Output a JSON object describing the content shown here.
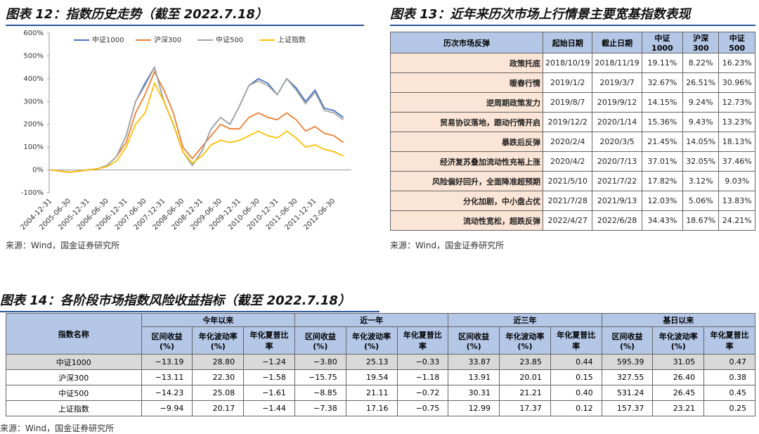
{
  "chart_data": {
    "type": "line",
    "title": "图表 12：指数历史走势（截至 2022.7.18）",
    "categories": [
      "2004-12-31",
      null,
      "2005-06-30",
      null,
      "2005-12-31",
      null,
      "2006-06-30",
      null,
      "2006-12-31",
      null,
      "2007-06-30",
      null,
      "2007-12-31",
      null,
      "2008-06-30",
      null,
      "2008-12-31",
      null,
      "2009-06-30",
      null,
      "2009-12-31",
      null,
      "2010-06-30",
      null,
      "2010-12-31",
      null,
      "2011-06-30",
      null,
      "2011-12-31",
      null,
      "2012-06-30",
      null
    ],
    "series": [
      {
        "name": "中证1000",
        "color": "#4472c4",
        "values": [
          0,
          -5,
          -10,
          -5,
          0,
          5,
          20,
          60,
          150,
          300,
          380,
          450,
          300,
          200,
          80,
          20,
          80,
          180,
          230,
          200,
          280,
          370,
          400,
          380,
          330,
          400,
          360,
          300,
          350,
          270,
          260,
          230
        ]
      },
      {
        "name": "沪深300",
        "color": "#ed7d31",
        "values": [
          0,
          -5,
          -10,
          -5,
          0,
          5,
          20,
          60,
          120,
          250,
          330,
          430,
          350,
          250,
          100,
          50,
          100,
          150,
          200,
          180,
          180,
          230,
          250,
          230,
          220,
          250,
          220,
          170,
          190,
          160,
          150,
          120
        ]
      },
      {
        "name": "中证500",
        "color": "#a5a5a5",
        "values": [
          0,
          -5,
          -10,
          -5,
          0,
          5,
          20,
          60,
          150,
          300,
          370,
          450,
          300,
          200,
          80,
          20,
          80,
          180,
          230,
          200,
          280,
          370,
          390,
          370,
          330,
          400,
          350,
          290,
          340,
          260,
          250,
          220
        ]
      },
      {
        "name": "上证指数",
        "color": "#ffc000",
        "values": [
          0,
          -5,
          -10,
          -5,
          0,
          5,
          15,
          40,
          100,
          200,
          250,
          380,
          300,
          200,
          80,
          30,
          60,
          110,
          130,
          120,
          130,
          150,
          170,
          150,
          140,
          170,
          140,
          100,
          110,
          90,
          80,
          60
        ]
      }
    ],
    "ylim": [
      -100,
      600
    ],
    "yticks": [
      {
        "value": -100,
        "label": "-100%"
      },
      {
        "value": 0,
        "label": "0%"
      },
      {
        "value": 100,
        "label": "100%"
      },
      {
        "value": 200,
        "label": "200%"
      },
      {
        "value": 300,
        "label": "300%"
      },
      {
        "value": 400,
        "label": "400%"
      },
      {
        "value": 500,
        "label": "500%"
      },
      {
        "value": 600,
        "label": "600%"
      }
    ],
    "legend": "top",
    "source": "来源：Wind，国金证券研究所"
  },
  "figure13": {
    "title": "图表 13：近年来历次市场上行情景主要宽基指数表现",
    "header": [
      "历次市场反弹",
      "起始日期",
      "截止日期",
      "中证1000",
      "沪深300",
      "中证500"
    ],
    "rows": [
      [
        "政策托底",
        "2018/10/19",
        "2018/11/19",
        "19.11%",
        "8.22%",
        "16.23%"
      ],
      [
        "暖春行情",
        "2019/1/2",
        "2019/3/7",
        "32.67%",
        "26.51%",
        "30.96%"
      ],
      [
        "逆周期政策发力",
        "2019/8/7",
        "2019/9/12",
        "14.15%",
        "9.24%",
        "12.73%"
      ],
      [
        "贸易协议落地，跟动行情开启",
        "2019/12/2",
        "2020/1/14",
        "15.36%",
        "9.43%",
        "13.23%"
      ],
      [
        "暴跌后反弹",
        "2020/2/4",
        "2020/3/5",
        "21.45%",
        "14.05%",
        "18.13%"
      ],
      [
        "经济复苏叠加流动性充裕上涨",
        "2020/4/2",
        "2020/7/13",
        "37.01%",
        "32.05%",
        "37.46%"
      ],
      [
        "风险偏好回升，全面降准超预期",
        "2021/5/10",
        "2021/7/22",
        "17.82%",
        "3.12%",
        "9.03%"
      ],
      [
        "分化加剧，中小盘占优",
        "2021/7/28",
        "2021/9/13",
        "12.03%",
        "5.06%",
        "13.83%"
      ],
      [
        "流动性宽松，超跌反弹",
        "2022/4/27",
        "2022/6/28",
        "34.43%",
        "18.67%",
        "24.21%"
      ]
    ],
    "source": "来源：Wind，国金证券研究所"
  },
  "figure14": {
    "title": "图表 14：各阶段市场指数风险收益指标（截至 2022.7.18）",
    "corner": "指数名称",
    "groups": [
      "今年以来",
      "近一年",
      "近三年",
      "基日以来"
    ],
    "subheader": [
      "区间收益 (%)",
      "年化波动率 (%)",
      "年化夏普比率"
    ],
    "rows": [
      [
        "中证1000",
        "−13.19",
        "28.80",
        "−1.24",
        "−3.80",
        "25.13",
        "−0.33",
        "33.87",
        "23.85",
        "0.44",
        "595.39",
        "31.05",
        "0.47"
      ],
      [
        "沪深300",
        "−13.11",
        "22.30",
        "−1.58",
        "−15.75",
        "19.54",
        "−1.18",
        "13.91",
        "20.01",
        "0.15",
        "327.55",
        "26.40",
        "0.38"
      ],
      [
        "中证500",
        "−14.23",
        "25.08",
        "−1.61",
        "−8.85",
        "21.11",
        "−0.72",
        "30.31",
        "21.21",
        "0.40",
        "531.24",
        "26.45",
        "0.45"
      ],
      [
        "上证指数",
        "−9.94",
        "20.17",
        "−1.44",
        "−7.38",
        "17.16",
        "−0.75",
        "12.99",
        "17.37",
        "0.12",
        "157.37",
        "23.21",
        "0.25"
      ]
    ],
    "source": "来源：Wind，国金证券研究所"
  }
}
